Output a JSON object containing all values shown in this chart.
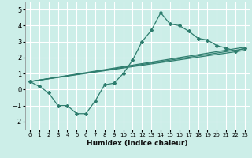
{
  "title": "",
  "xlabel": "Humidex (Indice chaleur)",
  "ylabel": "",
  "bg_color": "#cceee8",
  "line_color": "#2e7d6e",
  "grid_color": "#ffffff",
  "xlim": [
    -0.5,
    23.5
  ],
  "ylim": [
    -2.5,
    5.5
  ],
  "xticks": [
    0,
    1,
    2,
    3,
    4,
    5,
    6,
    7,
    8,
    9,
    10,
    11,
    12,
    13,
    14,
    15,
    16,
    17,
    18,
    19,
    20,
    21,
    22,
    23
  ],
  "yticks": [
    -2,
    -1,
    0,
    1,
    2,
    3,
    4,
    5
  ],
  "curve1_x": [
    0,
    1,
    2,
    3,
    4,
    5,
    6,
    7,
    8,
    9,
    10,
    11,
    12,
    13,
    14,
    15,
    16,
    17,
    18,
    19,
    20,
    21,
    22,
    23
  ],
  "curve1_y": [
    0.5,
    0.2,
    -0.2,
    -1.0,
    -1.0,
    -1.5,
    -1.5,
    -0.7,
    0.3,
    0.4,
    1.0,
    1.85,
    3.0,
    3.7,
    4.8,
    4.1,
    4.0,
    3.65,
    3.2,
    3.1,
    2.75,
    2.6,
    2.4,
    2.6
  ],
  "line1_x": [
    0,
    23
  ],
  "line1_y": [
    0.5,
    2.55
  ],
  "line2_x": [
    0,
    23
  ],
  "line2_y": [
    0.5,
    2.45
  ],
  "line3_x": [
    0,
    23
  ],
  "line3_y": [
    0.5,
    2.65
  ]
}
